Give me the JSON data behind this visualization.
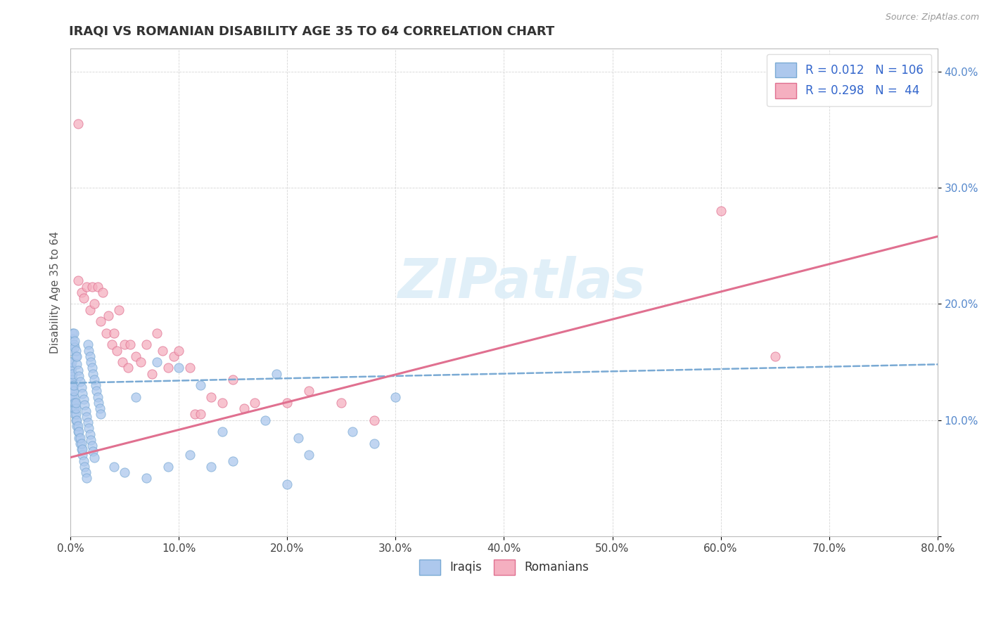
{
  "title": "IRAQI VS ROMANIAN DISABILITY AGE 35 TO 64 CORRELATION CHART",
  "source_text": "Source: ZipAtlas.com",
  "ylabel": "Disability Age 35 to 64",
  "xlim": [
    0.0,
    0.8
  ],
  "ylim": [
    0.0,
    0.42
  ],
  "iraqi_color": "#adc8ed",
  "iraqi_edge": "#7aaad4",
  "romanian_color": "#f5afc0",
  "romanian_edge": "#e07090",
  "trend_iraqi_color": "#7aaad4",
  "trend_romanian_color": "#e07090",
  "R_iraqi": 0.012,
  "N_iraqi": 106,
  "R_romanian": 0.298,
  "N_romanian": 44,
  "watermark": "ZIPatlas",
  "legend_entries": [
    "Iraqis",
    "Romanians"
  ],
  "trend_iraqi_start_y": 0.132,
  "trend_iraqi_end_y": 0.148,
  "trend_romanian_start_y": 0.068,
  "trend_romanian_end_y": 0.258,
  "iraqi_x": [
    0.0,
    0.0,
    0.0,
    0.0,
    0.0,
    0.001,
    0.001,
    0.001,
    0.001,
    0.001,
    0.001,
    0.001,
    0.001,
    0.002,
    0.002,
    0.002,
    0.002,
    0.002,
    0.002,
    0.003,
    0.003,
    0.003,
    0.003,
    0.003,
    0.004,
    0.004,
    0.004,
    0.005,
    0.005,
    0.005,
    0.005,
    0.006,
    0.006,
    0.007,
    0.007,
    0.008,
    0.008,
    0.009,
    0.009,
    0.01,
    0.01,
    0.011,
    0.011,
    0.012,
    0.013,
    0.014,
    0.015,
    0.016,
    0.017,
    0.018,
    0.019,
    0.02,
    0.021,
    0.022,
    0.023,
    0.024,
    0.025,
    0.026,
    0.027,
    0.028,
    0.002,
    0.002,
    0.003,
    0.003,
    0.004,
    0.004,
    0.005,
    0.005,
    0.006,
    0.006,
    0.007,
    0.008,
    0.009,
    0.01,
    0.011,
    0.012,
    0.013,
    0.014,
    0.015,
    0.016,
    0.017,
    0.018,
    0.019,
    0.02,
    0.021,
    0.022,
    0.04,
    0.05,
    0.06,
    0.07,
    0.08,
    0.09,
    0.1,
    0.11,
    0.12,
    0.13,
    0.14,
    0.15,
    0.18,
    0.19,
    0.2,
    0.21,
    0.22,
    0.26,
    0.28,
    0.3
  ],
  "iraqi_y": [
    0.13,
    0.135,
    0.14,
    0.145,
    0.15,
    0.12,
    0.125,
    0.13,
    0.135,
    0.14,
    0.145,
    0.15,
    0.16,
    0.115,
    0.12,
    0.125,
    0.13,
    0.135,
    0.14,
    0.11,
    0.115,
    0.12,
    0.125,
    0.13,
    0.105,
    0.11,
    0.115,
    0.1,
    0.105,
    0.11,
    0.115,
    0.095,
    0.1,
    0.09,
    0.095,
    0.085,
    0.09,
    0.08,
    0.085,
    0.075,
    0.08,
    0.07,
    0.075,
    0.065,
    0.06,
    0.055,
    0.05,
    0.165,
    0.16,
    0.155,
    0.15,
    0.145,
    0.14,
    0.135,
    0.13,
    0.125,
    0.12,
    0.115,
    0.11,
    0.105,
    0.17,
    0.175,
    0.165,
    0.175,
    0.163,
    0.168,
    0.155,
    0.16,
    0.148,
    0.155,
    0.143,
    0.138,
    0.133,
    0.128,
    0.123,
    0.118,
    0.113,
    0.108,
    0.103,
    0.098,
    0.093,
    0.088,
    0.083,
    0.078,
    0.073,
    0.068,
    0.06,
    0.055,
    0.12,
    0.05,
    0.15,
    0.06,
    0.145,
    0.07,
    0.13,
    0.06,
    0.09,
    0.065,
    0.1,
    0.14,
    0.045,
    0.085,
    0.07,
    0.09,
    0.08,
    0.12
  ],
  "romanian_x": [
    0.007,
    0.01,
    0.012,
    0.015,
    0.018,
    0.02,
    0.022,
    0.025,
    0.028,
    0.03,
    0.033,
    0.035,
    0.038,
    0.04,
    0.043,
    0.045,
    0.048,
    0.05,
    0.053,
    0.055,
    0.06,
    0.065,
    0.07,
    0.075,
    0.08,
    0.085,
    0.09,
    0.095,
    0.1,
    0.11,
    0.115,
    0.12,
    0.13,
    0.14,
    0.15,
    0.16,
    0.17,
    0.2,
    0.22,
    0.25,
    0.28,
    0.6,
    0.65,
    0.007
  ],
  "romanian_y": [
    0.22,
    0.21,
    0.205,
    0.215,
    0.195,
    0.215,
    0.2,
    0.215,
    0.185,
    0.21,
    0.175,
    0.19,
    0.165,
    0.175,
    0.16,
    0.195,
    0.15,
    0.165,
    0.145,
    0.165,
    0.155,
    0.15,
    0.165,
    0.14,
    0.175,
    0.16,
    0.145,
    0.155,
    0.16,
    0.145,
    0.105,
    0.105,
    0.12,
    0.115,
    0.135,
    0.11,
    0.115,
    0.115,
    0.125,
    0.115,
    0.1,
    0.28,
    0.155,
    0.355
  ]
}
